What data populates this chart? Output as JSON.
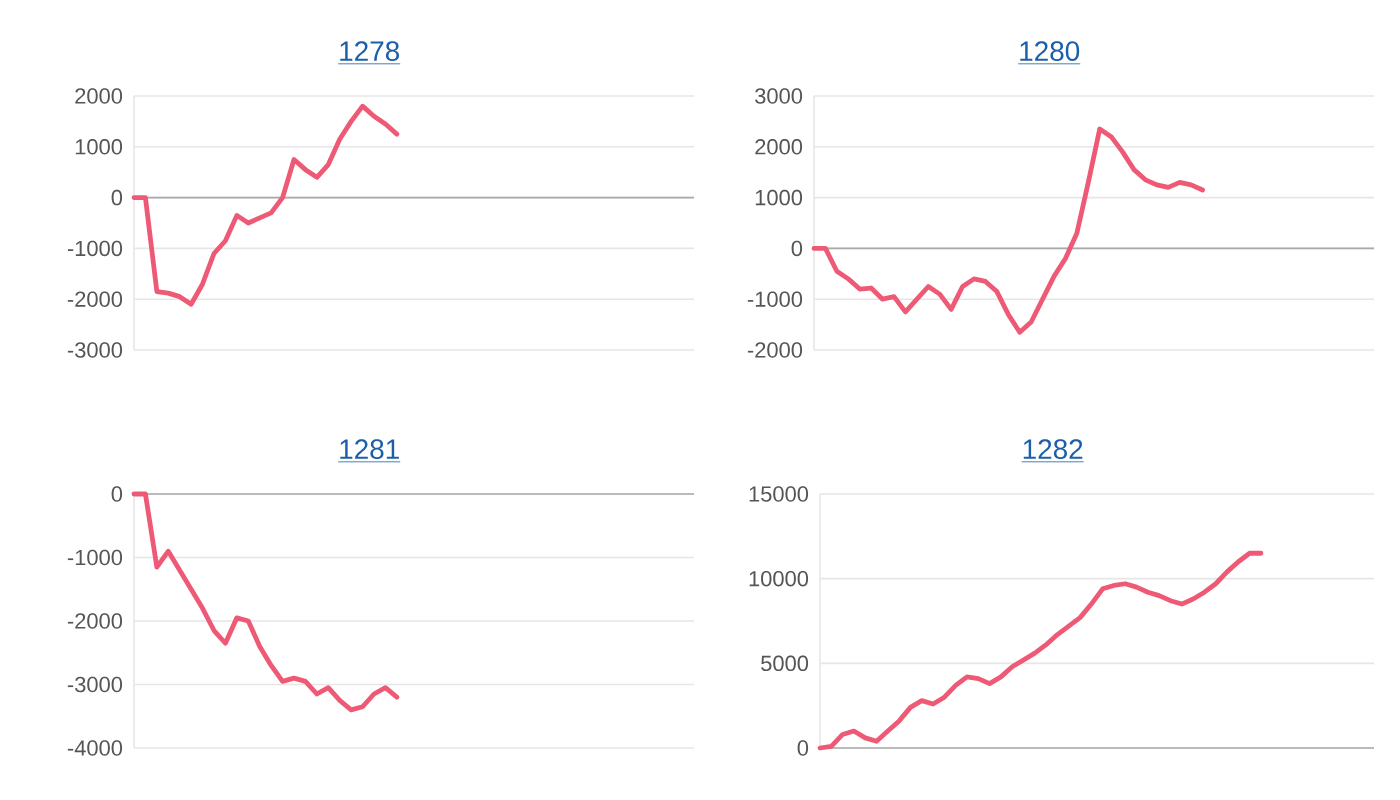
{
  "chart_data": [
    {
      "type": "line",
      "title": "1278",
      "color": "#ee5a75",
      "grid": "y",
      "ylim": [
        -3000,
        2000
      ],
      "yticks": [
        -3000,
        -2000,
        -1000,
        0,
        1000,
        2000
      ],
      "categories": [
        null,
        null,
        null,
        null,
        null,
        null,
        null,
        null,
        null,
        null,
        null,
        null,
        null,
        null,
        null,
        null,
        null,
        null,
        null,
        null,
        null,
        null,
        null,
        null,
        null,
        null,
        null,
        null,
        null,
        null,
        null,
        null,
        null,
        null,
        null,
        null,
        null,
        null,
        null,
        null,
        null,
        null,
        null,
        null,
        null,
        null,
        null,
        null,
        null,
        null
      ],
      "values": [
        0,
        0,
        -1850,
        -1880,
        -1950,
        -2100,
        -1700,
        -1100,
        -850,
        -350,
        -500,
        -400,
        -300,
        0,
        750,
        550,
        400,
        650,
        1150,
        1500,
        1800,
        1600,
        1450,
        1250,
        null,
        null,
        null,
        null,
        null,
        null,
        null,
        null,
        null,
        null,
        null,
        null,
        null,
        null,
        null,
        null,
        null,
        null,
        null,
        null,
        null,
        null,
        null,
        null,
        null,
        null
      ]
    },
    {
      "type": "line",
      "title": "1280",
      "color": "#ee5a75",
      "grid": "y",
      "ylim": [
        -2000,
        3000
      ],
      "yticks": [
        -2000,
        -1000,
        0,
        1000,
        2000,
        3000
      ],
      "categories": [
        null,
        null,
        null,
        null,
        null,
        null,
        null,
        null,
        null,
        null,
        null,
        null,
        null,
        null,
        null,
        null,
        null,
        null,
        null,
        null,
        null,
        null,
        null,
        null,
        null,
        null,
        null,
        null,
        null,
        null,
        null,
        null,
        null,
        null,
        null,
        null,
        null,
        null,
        null,
        null,
        null,
        null,
        null,
        null,
        null,
        null,
        null,
        null,
        null,
        null
      ],
      "values": [
        0,
        0,
        -450,
        -600,
        -800,
        -780,
        -1000,
        -950,
        -1250,
        -1000,
        -750,
        -900,
        -1200,
        -750,
        -600,
        -650,
        -850,
        -1300,
        -1650,
        -1450,
        -1000,
        -550,
        -200,
        300,
        1300,
        2350,
        2200,
        1900,
        1550,
        1350,
        1250,
        1200,
        1300,
        1250,
        1150,
        null,
        null,
        null,
        null,
        null,
        null,
        null,
        null,
        null,
        null,
        null,
        null,
        null,
        null,
        null
      ]
    },
    {
      "type": "line",
      "title": "1281",
      "color": "#ee5a75",
      "grid": "y",
      "ylim": [
        -4000,
        0
      ],
      "yticks": [
        -4000,
        -3000,
        -2000,
        -1000,
        0
      ],
      "categories": [
        null,
        null,
        null,
        null,
        null,
        null,
        null,
        null,
        null,
        null,
        null,
        null,
        null,
        null,
        null,
        null,
        null,
        null,
        null,
        null,
        null,
        null,
        null,
        null,
        null,
        null,
        null,
        null,
        null,
        null,
        null,
        null,
        null,
        null,
        null,
        null,
        null,
        null,
        null,
        null,
        null,
        null,
        null,
        null,
        null,
        null,
        null,
        null,
        null,
        null
      ],
      "values": [
        0,
        0,
        -1150,
        -900,
        -1200,
        -1500,
        -1800,
        -2150,
        -2350,
        -1950,
        -2000,
        -2400,
        -2700,
        -2950,
        -2900,
        -2950,
        -3150,
        -3050,
        -3250,
        -3400,
        -3350,
        -3150,
        -3050,
        -3200,
        null,
        null,
        null,
        null,
        null,
        null,
        null,
        null,
        null,
        null,
        null,
        null,
        null,
        null,
        null,
        null,
        null,
        null,
        null,
        null,
        null,
        null,
        null,
        null,
        null,
        null
      ]
    },
    {
      "type": "line",
      "title": "1282",
      "color": "#ee5a75",
      "grid": "y",
      "ylim": [
        0,
        15000
      ],
      "yticks": [
        0,
        5000,
        10000,
        15000
      ],
      "categories": [
        null,
        null,
        null,
        null,
        null,
        null,
        null,
        null,
        null,
        null,
        null,
        null,
        null,
        null,
        null,
        null,
        null,
        null,
        null,
        null,
        null,
        null,
        null,
        null,
        null,
        null,
        null,
        null,
        null,
        null,
        null,
        null,
        null,
        null,
        null,
        null,
        null,
        null,
        null,
        null,
        null,
        null,
        null,
        null,
        null,
        null,
        null,
        null,
        null,
        null
      ],
      "values": [
        0,
        100,
        800,
        1000,
        600,
        400,
        1000,
        1600,
        2400,
        2800,
        2600,
        3000,
        3700,
        4200,
        4100,
        3800,
        4200,
        4800,
        5200,
        5600,
        6100,
        6700,
        7200,
        7700,
        8500,
        9400,
        9600,
        9700,
        9500,
        9200,
        9000,
        8700,
        8500,
        8800,
        9200,
        9700,
        10400,
        11000,
        11500,
        11500,
        null,
        null,
        null,
        null,
        null,
        null,
        null,
        null,
        null,
        null
      ]
    }
  ]
}
